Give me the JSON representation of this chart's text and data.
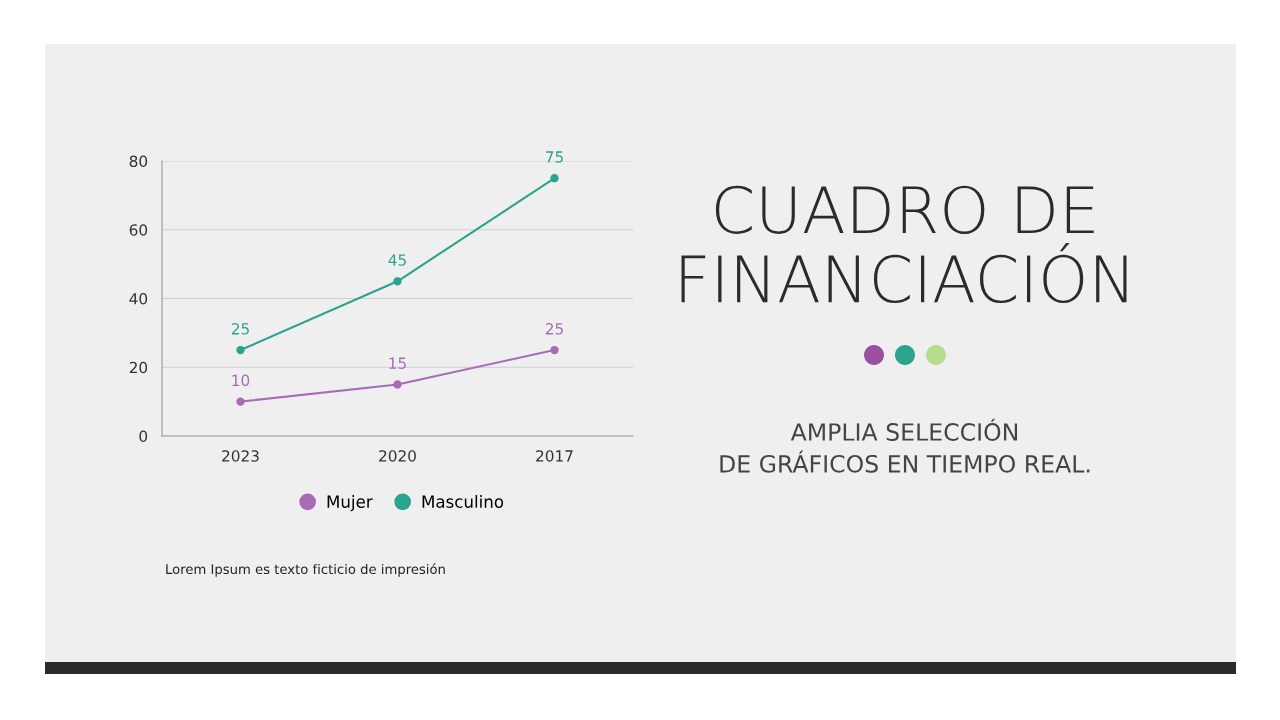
{
  "chart_data": {
    "type": "line",
    "title": "CUADRO DE FINANCIACIÓN",
    "subtitle": "AMPLIA SELECCIÓN DE GRÁFICOS EN TIEMPO REAL.",
    "categories": [
      "2023",
      "2020",
      "2017"
    ],
    "series": [
      {
        "name": "Mujer",
        "color": "#a86bb5",
        "values": [
          10,
          15,
          25
        ]
      },
      {
        "name": "Masculino",
        "color": "#2aa38f",
        "values": [
          25,
          45,
          75
        ]
      }
    ],
    "ylim": [
      0,
      80
    ],
    "yticks": [
      0,
      20,
      40,
      60,
      80
    ],
    "grid": "y",
    "legend": "bottom",
    "marker": "circle",
    "line_style": "solid",
    "data_labels": true,
    "annotations": [
      "Lorem Ipsum es texto ficticio de impresión"
    ]
  }
}
